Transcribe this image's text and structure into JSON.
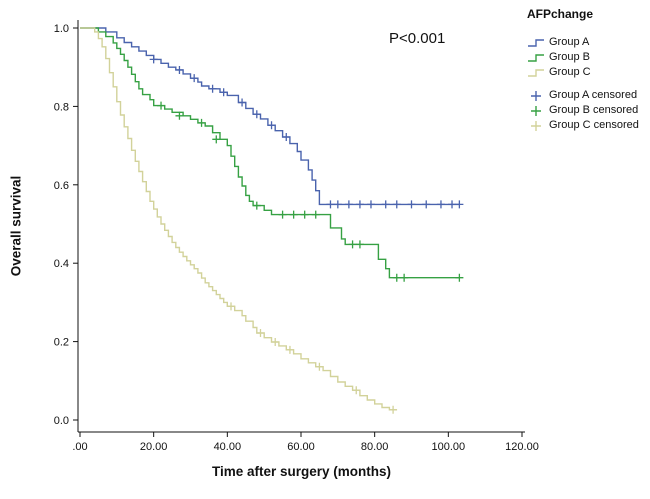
{
  "chart_data": {
    "type": "line",
    "subtype": "kaplan-meier-step",
    "title": "",
    "xlabel": "Time after surgery (months)",
    "ylabel": "Overall survival",
    "annotation": {
      "text": "P<0.001"
    },
    "xlim": [
      0,
      120
    ],
    "ylim": [
      0,
      1.0
    ],
    "grid": false,
    "legend_position": "right",
    "x_ticks": [
      {
        "v": 0,
        "label": ".00"
      },
      {
        "v": 20,
        "label": "20.00"
      },
      {
        "v": 40,
        "label": "40.00"
      },
      {
        "v": 60,
        "label": "60.00"
      },
      {
        "v": 80,
        "label": "80.00"
      },
      {
        "v": 100,
        "label": "100.00"
      },
      {
        "v": 120,
        "label": "120.00"
      }
    ],
    "y_ticks": [
      {
        "v": 0.0,
        "label": "0.0"
      },
      {
        "v": 0.2,
        "label": "0.2"
      },
      {
        "v": 0.4,
        "label": "0.4"
      },
      {
        "v": 0.6,
        "label": "0.6"
      },
      {
        "v": 0.8,
        "label": "0.8"
      },
      {
        "v": 1.0,
        "label": "1.0"
      }
    ],
    "series": [
      {
        "name": "Group A",
        "color": "#4a63ad",
        "end": 103,
        "steps": [
          [
            7,
            0.99
          ],
          [
            10,
            0.975
          ],
          [
            12,
            0.963
          ],
          [
            14,
            0.952
          ],
          [
            16,
            0.941
          ],
          [
            18,
            0.93
          ],
          [
            20,
            0.92
          ],
          [
            22,
            0.91
          ],
          [
            24,
            0.9
          ],
          [
            26,
            0.893
          ],
          [
            28,
            0.883
          ],
          [
            30,
            0.872
          ],
          [
            32,
            0.862
          ],
          [
            33,
            0.852
          ],
          [
            35,
            0.845
          ],
          [
            38,
            0.836
          ],
          [
            40,
            0.828
          ],
          [
            43,
            0.81
          ],
          [
            45,
            0.795
          ],
          [
            47,
            0.78
          ],
          [
            49,
            0.768
          ],
          [
            51,
            0.752
          ],
          [
            53,
            0.738
          ],
          [
            55,
            0.722
          ],
          [
            57,
            0.705
          ],
          [
            59,
            0.685
          ],
          [
            60,
            0.663
          ],
          [
            62,
            0.638
          ],
          [
            63,
            0.612
          ],
          [
            64,
            0.585
          ],
          [
            65,
            0.55
          ]
        ],
        "censored": [
          [
            20,
            0.92
          ],
          [
            27,
            0.893
          ],
          [
            31,
            0.872
          ],
          [
            36,
            0.845
          ],
          [
            39,
            0.836
          ],
          [
            44,
            0.81
          ],
          [
            48,
            0.78
          ],
          [
            52,
            0.752
          ],
          [
            56,
            0.722
          ],
          [
            68,
            0.55
          ],
          [
            70,
            0.55
          ],
          [
            73,
            0.55
          ],
          [
            76,
            0.55
          ],
          [
            79,
            0.55
          ],
          [
            83,
            0.55
          ],
          [
            86,
            0.55
          ],
          [
            90,
            0.55
          ],
          [
            94,
            0.55
          ],
          [
            98,
            0.55
          ],
          [
            101,
            0.55
          ],
          [
            103,
            0.55
          ]
        ]
      },
      {
        "name": "Group B",
        "color": "#36a143",
        "end": 103,
        "steps": [
          [
            5,
            0.99
          ],
          [
            7,
            0.978
          ],
          [
            9,
            0.962
          ],
          [
            10,
            0.948
          ],
          [
            11,
            0.933
          ],
          [
            12,
            0.917
          ],
          [
            13,
            0.9
          ],
          [
            14,
            0.882
          ],
          [
            15,
            0.863
          ],
          [
            16,
            0.845
          ],
          [
            17,
            0.83
          ],
          [
            19,
            0.817
          ],
          [
            20,
            0.802
          ],
          [
            23,
            0.793
          ],
          [
            25,
            0.785
          ],
          [
            28,
            0.776
          ],
          [
            30,
            0.767
          ],
          [
            32,
            0.758
          ],
          [
            34,
            0.75
          ],
          [
            36,
            0.733
          ],
          [
            38,
            0.716
          ],
          [
            40,
            0.7
          ],
          [
            41,
            0.673
          ],
          [
            42,
            0.647
          ],
          [
            43,
            0.62
          ],
          [
            44,
            0.597
          ],
          [
            45,
            0.573
          ],
          [
            46,
            0.558
          ],
          [
            47,
            0.547
          ],
          [
            50,
            0.535
          ],
          [
            52,
            0.524
          ],
          [
            68,
            0.49
          ],
          [
            71,
            0.462
          ],
          [
            72,
            0.448
          ],
          [
            81,
            0.41
          ],
          [
            83,
            0.386
          ],
          [
            84,
            0.363
          ]
        ],
        "censored": [
          [
            22,
            0.802
          ],
          [
            27,
            0.776
          ],
          [
            33,
            0.758
          ],
          [
            37,
            0.716
          ],
          [
            48,
            0.547
          ],
          [
            55,
            0.524
          ],
          [
            58,
            0.524
          ],
          [
            61,
            0.524
          ],
          [
            64,
            0.524
          ],
          [
            74,
            0.448
          ],
          [
            76,
            0.448
          ],
          [
            86,
            0.363
          ],
          [
            88,
            0.363
          ],
          [
            103,
            0.363
          ]
        ]
      },
      {
        "name": "Group C",
        "color": "#d2d29a",
        "end": 86,
        "steps": [
          [
            4,
            0.99
          ],
          [
            5,
            0.973
          ],
          [
            6,
            0.952
          ],
          [
            7,
            0.922
          ],
          [
            8,
            0.886
          ],
          [
            9,
            0.85
          ],
          [
            10,
            0.812
          ],
          [
            11,
            0.778
          ],
          [
            12,
            0.748
          ],
          [
            13,
            0.718
          ],
          [
            14,
            0.688
          ],
          [
            15,
            0.66
          ],
          [
            16,
            0.634
          ],
          [
            17,
            0.608
          ],
          [
            18,
            0.583
          ],
          [
            19,
            0.558
          ],
          [
            20,
            0.538
          ],
          [
            21,
            0.518
          ],
          [
            22,
            0.5
          ],
          [
            23,
            0.484
          ],
          [
            24,
            0.468
          ],
          [
            25,
            0.453
          ],
          [
            26,
            0.44
          ],
          [
            27,
            0.428
          ],
          [
            28,
            0.417
          ],
          [
            29,
            0.406
          ],
          [
            30,
            0.396
          ],
          [
            31,
            0.386
          ],
          [
            32,
            0.375
          ],
          [
            33,
            0.362
          ],
          [
            34,
            0.35
          ],
          [
            35,
            0.34
          ],
          [
            36,
            0.33
          ],
          [
            37,
            0.32
          ],
          [
            38,
            0.31
          ],
          [
            39,
            0.3
          ],
          [
            40,
            0.29
          ],
          [
            42,
            0.279
          ],
          [
            44,
            0.266
          ],
          [
            45,
            0.252
          ],
          [
            47,
            0.236
          ],
          [
            48,
            0.222
          ],
          [
            50,
            0.21
          ],
          [
            52,
            0.199
          ],
          [
            54,
            0.189
          ],
          [
            56,
            0.179
          ],
          [
            58,
            0.169
          ],
          [
            60,
            0.156
          ],
          [
            62,
            0.146
          ],
          [
            64,
            0.136
          ],
          [
            66,
            0.126
          ],
          [
            68,
            0.111
          ],
          [
            70,
            0.097
          ],
          [
            72,
            0.086
          ],
          [
            74,
            0.076
          ],
          [
            76,
            0.062
          ],
          [
            78,
            0.051
          ],
          [
            80,
            0.041
          ],
          [
            82,
            0.032
          ],
          [
            84,
            0.026
          ]
        ],
        "censored": [
          [
            41,
            0.29
          ],
          [
            49,
            0.222
          ],
          [
            53,
            0.199
          ],
          [
            57,
            0.179
          ],
          [
            65,
            0.136
          ],
          [
            75,
            0.076
          ],
          [
            85,
            0.026
          ]
        ]
      }
    ]
  },
  "legend": {
    "title": "AFPchange",
    "items": [
      {
        "label": "Group A",
        "symbol": "step-line",
        "color": "#4a63ad"
      },
      {
        "label": "Group B",
        "symbol": "step-line",
        "color": "#36a143"
      },
      {
        "label": "Group C",
        "symbol": "step-line",
        "color": "#d2d29a"
      },
      {
        "label": "Group A censored",
        "symbol": "plus",
        "color": "#4a63ad"
      },
      {
        "label": "Group B censored",
        "symbol": "plus",
        "color": "#36a143"
      },
      {
        "label": "Group C censored",
        "symbol": "plus",
        "color": "#d2d29a"
      }
    ]
  }
}
